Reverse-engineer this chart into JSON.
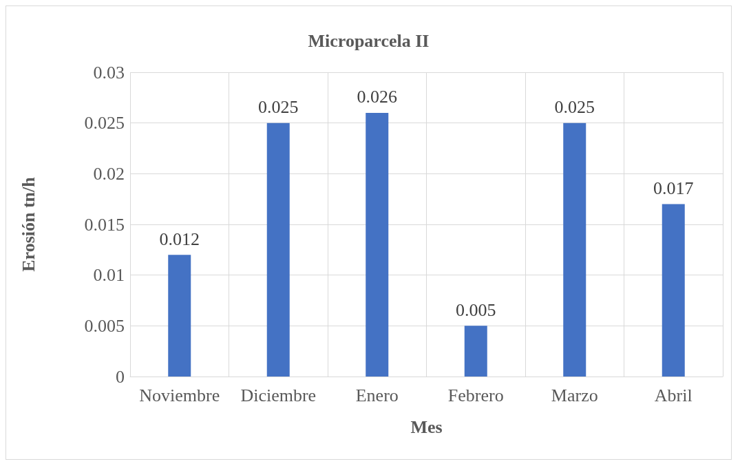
{
  "chart_data": {
    "type": "bar",
    "title": "Microparcela II",
    "xlabel": "Mes",
    "ylabel": "Erosión tn/h",
    "categories": [
      "Noviembre",
      "Diciembre",
      "Enero",
      "Febrero",
      "Marzo",
      "Abril"
    ],
    "values": [
      0.012,
      0.025,
      0.026,
      0.005,
      0.025,
      0.017
    ],
    "color": "#4472c4",
    "ylim": [
      0,
      0.03
    ],
    "yticks": [
      0,
      0.005,
      0.01,
      0.015,
      0.02,
      0.025,
      0.03
    ],
    "grid": true,
    "data_labels": true
  }
}
